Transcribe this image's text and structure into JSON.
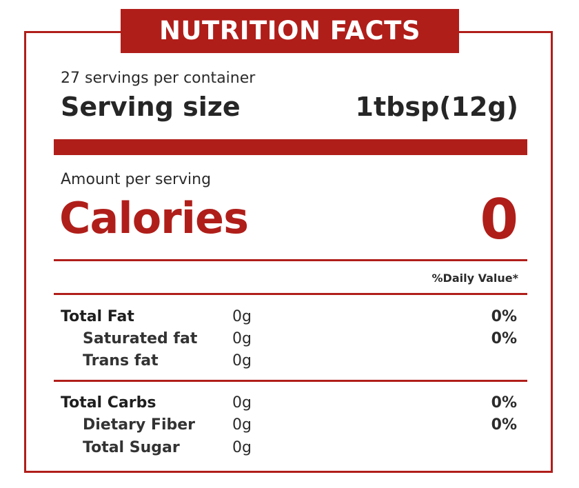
{
  "header": {
    "title": "NUTRITION FACTS"
  },
  "serving": {
    "servings_per_container": "27 servings per container",
    "size_label": "Serving size",
    "size_value": "1tbsp(12g)"
  },
  "calories": {
    "amount_label": "Amount per serving",
    "label": "Calories",
    "value": "0"
  },
  "daily_value_header": "%Daily Value*",
  "fat_group": {
    "total": {
      "name": "Total Fat",
      "amount": "0g",
      "dv": "0%"
    },
    "saturated": {
      "name": "Saturated fat",
      "amount": "0g",
      "dv": "0%"
    },
    "trans": {
      "name": "Trans fat",
      "amount": "0g"
    }
  },
  "carb_group": {
    "total": {
      "name": "Total Carbs",
      "amount": "0g",
      "dv": "0%"
    },
    "fiber": {
      "name": "Dietary Fiber",
      "amount": "0g",
      "dv": "0%"
    },
    "sugar": {
      "name": "Total Sugar",
      "amount": "0g"
    }
  },
  "colors": {
    "accent": "#b01e1a",
    "text": "#222222",
    "background": "#ffffff"
  }
}
